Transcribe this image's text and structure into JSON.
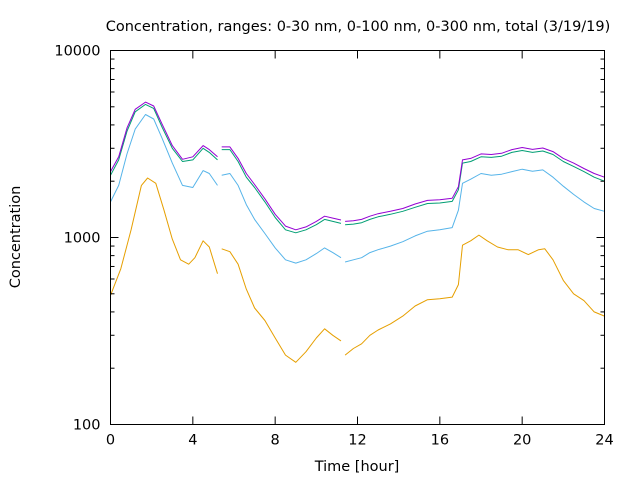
{
  "chart_data": {
    "type": "line",
    "title": "Concentration, ranges: 0-30 nm, 0-100 nm, 0-300 nm, total (3/19/19)",
    "xlabel": "Time [hour]",
    "ylabel": "Concentration",
    "xlim": [
      0,
      24
    ],
    "ylim": [
      100,
      10000
    ],
    "y_scale": "log",
    "x_ticks": [
      0,
      4,
      8,
      12,
      16,
      20,
      24
    ],
    "x_tick_labels": [
      "0",
      "4",
      "8",
      "12",
      "16",
      "20",
      "24"
    ],
    "y_ticks": [
      100,
      1000,
      10000
    ],
    "y_tick_labels": [
      "100",
      "1000",
      "10000"
    ],
    "grid": false,
    "legend": "none",
    "series": [
      {
        "color": "#e69f00",
        "segments": [
          [
            [
              0,
              490
            ],
            [
              0.5,
              680
            ],
            [
              1,
              1100
            ],
            [
              1.5,
              1900
            ],
            [
              1.8,
              2080
            ],
            [
              2.2,
              1950
            ],
            [
              2.6,
              1400
            ],
            [
              3,
              980
            ],
            [
              3.4,
              760
            ],
            [
              3.8,
              720
            ],
            [
              4.1,
              780
            ],
            [
              4.5,
              960
            ],
            [
              4.8,
              890
            ],
            [
              5.2,
              640
            ]
          ],
          [
            [
              5.4,
              870
            ],
            [
              5.8,
              840
            ],
            [
              6.2,
              720
            ],
            [
              6.6,
              530
            ],
            [
              7,
              420
            ],
            [
              7.5,
              360
            ],
            [
              8,
              290
            ],
            [
              8.5,
              235
            ],
            [
              9,
              215
            ],
            [
              9.5,
              245
            ],
            [
              10,
              290
            ],
            [
              10.4,
              325
            ],
            [
              10.8,
              300
            ],
            [
              11.2,
              280
            ]
          ],
          [
            [
              11.4,
              235
            ],
            [
              11.8,
              255
            ],
            [
              12.2,
              270
            ],
            [
              12.6,
              300
            ],
            [
              13,
              320
            ],
            [
              13.6,
              345
            ],
            [
              14.2,
              380
            ],
            [
              14.8,
              430
            ],
            [
              15.4,
              465
            ],
            [
              16,
              470
            ],
            [
              16.6,
              480
            ],
            [
              16.9,
              560
            ],
            [
              17.1,
              910
            ],
            [
              17.5,
              960
            ],
            [
              17.9,
              1030
            ],
            [
              18.3,
              960
            ],
            [
              18.8,
              890
            ],
            [
              19.3,
              860
            ],
            [
              19.8,
              860
            ],
            [
              20.3,
              810
            ],
            [
              20.8,
              860
            ],
            [
              21.1,
              870
            ],
            [
              21.5,
              760
            ],
            [
              22,
              590
            ],
            [
              22.5,
              500
            ],
            [
              23,
              460
            ],
            [
              23.5,
              400
            ],
            [
              24,
              380
            ]
          ]
        ]
      },
      {
        "color": "#56b4e9",
        "segments": [
          [
            [
              0,
              1550
            ],
            [
              0.4,
              1900
            ],
            [
              0.8,
              2800
            ],
            [
              1.2,
              3800
            ],
            [
              1.7,
              4550
            ],
            [
              2.1,
              4300
            ],
            [
              2.5,
              3400
            ],
            [
              3,
              2500
            ],
            [
              3.5,
              1900
            ],
            [
              4,
              1850
            ],
            [
              4.5,
              2280
            ],
            [
              4.8,
              2200
            ],
            [
              5.2,
              1900
            ]
          ],
          [
            [
              5.4,
              2150
            ],
            [
              5.8,
              2200
            ],
            [
              6.2,
              1900
            ],
            [
              6.6,
              1500
            ],
            [
              7,
              1250
            ],
            [
              7.5,
              1050
            ],
            [
              8,
              880
            ],
            [
              8.5,
              760
            ],
            [
              9,
              730
            ],
            [
              9.5,
              760
            ],
            [
              10,
              820
            ],
            [
              10.4,
              880
            ],
            [
              10.8,
              830
            ],
            [
              11.2,
              780
            ]
          ],
          [
            [
              11.4,
              740
            ],
            [
              11.8,
              760
            ],
            [
              12.2,
              780
            ],
            [
              12.6,
              830
            ],
            [
              13,
              860
            ],
            [
              13.6,
              900
            ],
            [
              14.2,
              950
            ],
            [
              14.8,
              1020
            ],
            [
              15.4,
              1080
            ],
            [
              16,
              1100
            ],
            [
              16.6,
              1130
            ],
            [
              16.9,
              1400
            ],
            [
              17.1,
              1950
            ],
            [
              17.5,
              2050
            ],
            [
              18,
              2200
            ],
            [
              18.5,
              2150
            ],
            [
              19,
              2180
            ],
            [
              19.5,
              2250
            ],
            [
              20,
              2320
            ],
            [
              20.5,
              2260
            ],
            [
              21,
              2300
            ],
            [
              21.5,
              2100
            ],
            [
              22,
              1880
            ],
            [
              22.5,
              1700
            ],
            [
              23,
              1550
            ],
            [
              23.5,
              1430
            ],
            [
              24,
              1380
            ]
          ]
        ]
      },
      {
        "color": "#009e73",
        "segments": [
          [
            [
              0,
              2150
            ],
            [
              0.4,
              2600
            ],
            [
              0.8,
              3700
            ],
            [
              1.2,
              4700
            ],
            [
              1.7,
              5150
            ],
            [
              2.1,
              4900
            ],
            [
              2.5,
              3900
            ],
            [
              3,
              3000
            ],
            [
              3.5,
              2550
            ],
            [
              4,
              2600
            ],
            [
              4.5,
              3000
            ],
            [
              4.8,
              2850
            ],
            [
              5.2,
              2600
            ]
          ],
          [
            [
              5.4,
              2950
            ],
            [
              5.8,
              2950
            ],
            [
              6.2,
              2550
            ],
            [
              6.6,
              2100
            ],
            [
              7,
              1850
            ],
            [
              7.5,
              1550
            ],
            [
              8,
              1280
            ],
            [
              8.5,
              1100
            ],
            [
              9,
              1060
            ],
            [
              9.5,
              1100
            ],
            [
              10,
              1170
            ],
            [
              10.4,
              1250
            ],
            [
              10.8,
              1220
            ],
            [
              11.2,
              1190
            ]
          ],
          [
            [
              11.4,
              1170
            ],
            [
              11.8,
              1180
            ],
            [
              12.2,
              1200
            ],
            [
              12.6,
              1250
            ],
            [
              13,
              1290
            ],
            [
              13.6,
              1330
            ],
            [
              14.2,
              1380
            ],
            [
              14.8,
              1450
            ],
            [
              15.4,
              1520
            ],
            [
              16,
              1530
            ],
            [
              16.6,
              1560
            ],
            [
              16.9,
              1800
            ],
            [
              17.1,
              2500
            ],
            [
              17.5,
              2550
            ],
            [
              18,
              2700
            ],
            [
              18.5,
              2680
            ],
            [
              19,
              2720
            ],
            [
              19.5,
              2850
            ],
            [
              20,
              2920
            ],
            [
              20.5,
              2850
            ],
            [
              21,
              2900
            ],
            [
              21.5,
              2780
            ],
            [
              22,
              2550
            ],
            [
              22.5,
              2400
            ],
            [
              23,
              2250
            ],
            [
              23.5,
              2100
            ],
            [
              24,
              2000
            ]
          ]
        ]
      },
      {
        "color": "#9400d3",
        "segments": [
          [
            [
              0,
              2250
            ],
            [
              0.4,
              2700
            ],
            [
              0.8,
              3850
            ],
            [
              1.2,
              4850
            ],
            [
              1.7,
              5300
            ],
            [
              2.1,
              5050
            ],
            [
              2.5,
              4050
            ],
            [
              3,
              3100
            ],
            [
              3.5,
              2620
            ],
            [
              4,
              2700
            ],
            [
              4.5,
              3100
            ],
            [
              4.8,
              2950
            ],
            [
              5.2,
              2700
            ]
          ],
          [
            [
              5.4,
              3050
            ],
            [
              5.8,
              3050
            ],
            [
              6.2,
              2650
            ],
            [
              6.6,
              2200
            ],
            [
              7,
              1920
            ],
            [
              7.5,
              1610
            ],
            [
              8,
              1330
            ],
            [
              8.5,
              1150
            ],
            [
              9,
              1100
            ],
            [
              9.5,
              1140
            ],
            [
              10,
              1220
            ],
            [
              10.4,
              1300
            ],
            [
              10.8,
              1270
            ],
            [
              11.2,
              1240
            ]
          ],
          [
            [
              11.4,
              1220
            ],
            [
              11.8,
              1230
            ],
            [
              12.2,
              1250
            ],
            [
              12.6,
              1300
            ],
            [
              13,
              1340
            ],
            [
              13.6,
              1380
            ],
            [
              14.2,
              1430
            ],
            [
              14.8,
              1510
            ],
            [
              15.4,
              1580
            ],
            [
              16,
              1590
            ],
            [
              16.6,
              1620
            ],
            [
              16.9,
              1870
            ],
            [
              17.1,
              2600
            ],
            [
              17.5,
              2650
            ],
            [
              18,
              2800
            ],
            [
              18.5,
              2780
            ],
            [
              19,
              2820
            ],
            [
              19.5,
              2950
            ],
            [
              20,
              3030
            ],
            [
              20.5,
              2960
            ],
            [
              21,
              3010
            ],
            [
              21.5,
              2880
            ],
            [
              22,
              2650
            ],
            [
              22.5,
              2500
            ],
            [
              23,
              2340
            ],
            [
              23.5,
              2200
            ],
            [
              24,
              2100
            ]
          ]
        ]
      }
    ]
  }
}
